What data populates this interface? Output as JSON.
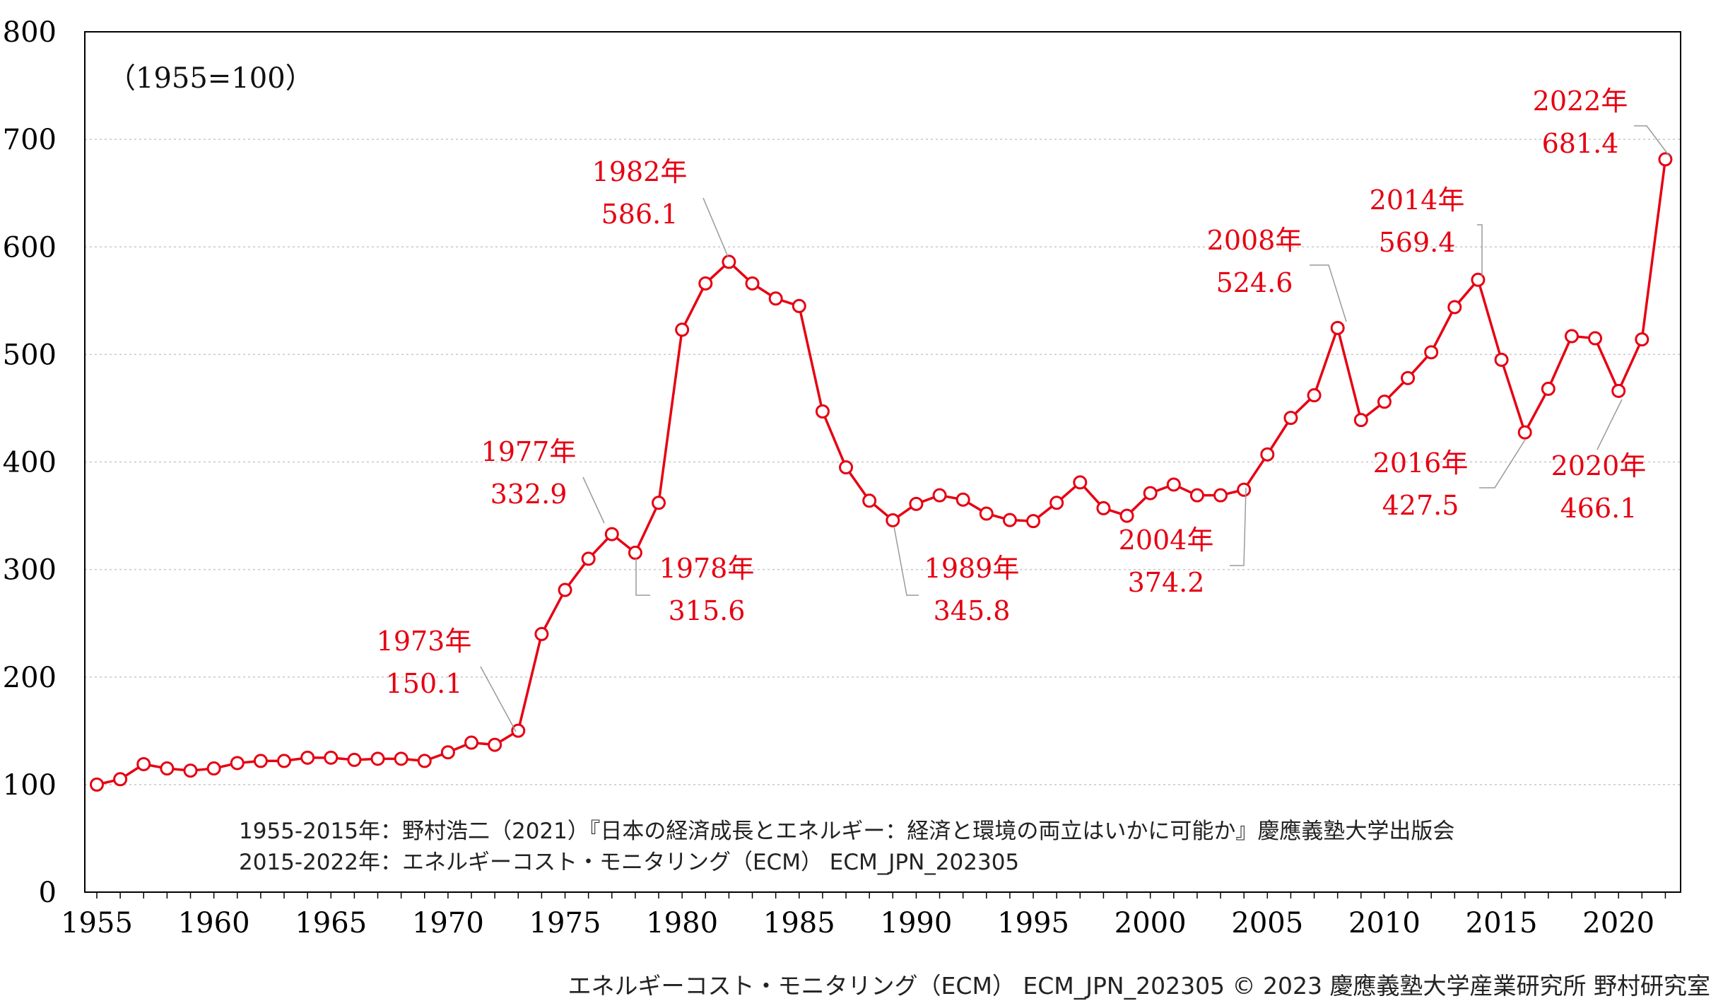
{
  "chart_data": {
    "type": "line",
    "base_note": "（1955=100）",
    "x": [
      1955,
      1956,
      1957,
      1958,
      1959,
      1960,
      1961,
      1962,
      1963,
      1964,
      1965,
      1966,
      1967,
      1968,
      1969,
      1970,
      1971,
      1972,
      1973,
      1974,
      1975,
      1976,
      1977,
      1978,
      1979,
      1980,
      1981,
      1982,
      1983,
      1984,
      1985,
      1986,
      1987,
      1988,
      1989,
      1990,
      1991,
      1992,
      1993,
      1994,
      1995,
      1996,
      1997,
      1998,
      1999,
      2000,
      2001,
      2002,
      2003,
      2004,
      2005,
      2006,
      2007,
      2008,
      2009,
      2010,
      2011,
      2012,
      2013,
      2014,
      2015,
      2016,
      2017,
      2018,
      2019,
      2020,
      2021,
      2022
    ],
    "values": [
      100,
      105,
      119,
      115,
      113,
      115,
      120,
      122,
      122,
      125,
      125,
      123,
      124,
      124,
      122,
      130,
      139,
      137,
      150.1,
      240,
      281,
      310,
      332.9,
      315.6,
      362,
      523,
      566,
      586.1,
      566,
      552,
      545,
      447,
      395,
      364,
      345.8,
      361,
      369,
      365,
      352,
      346,
      345,
      362,
      381,
      357,
      350,
      371,
      379,
      369,
      369,
      374.2,
      407,
      441,
      462,
      524.6,
      439,
      456,
      478,
      502,
      544,
      569.4,
      495,
      427.5,
      468,
      517,
      515,
      466.1,
      514,
      681.4
    ],
    "ylim": [
      0,
      800
    ],
    "yticks": [
      0,
      100,
      200,
      300,
      400,
      500,
      600,
      700,
      800
    ],
    "xticks": [
      1955,
      1960,
      1965,
      1970,
      1975,
      1980,
      1985,
      1990,
      1995,
      2000,
      2005,
      2010,
      2015,
      2020
    ],
    "grid": "horizontal dotted",
    "line_color": "#e60012",
    "annotations": [
      {
        "year": 1973,
        "label": "1973年",
        "value": "150.1"
      },
      {
        "year": 1977,
        "label": "1977年",
        "value": "332.9"
      },
      {
        "year": 1978,
        "label": "1978年",
        "value": "315.6"
      },
      {
        "year": 1982,
        "label": "1982年",
        "value": "586.1"
      },
      {
        "year": 1989,
        "label": "1989年",
        "value": "345.8"
      },
      {
        "year": 2004,
        "label": "2004年",
        "value": "374.2"
      },
      {
        "year": 2008,
        "label": "2008年",
        "value": "524.6"
      },
      {
        "year": 2014,
        "label": "2014年",
        "value": "569.4"
      },
      {
        "year": 2016,
        "label": "2016年",
        "value": "427.5"
      },
      {
        "year": 2020,
        "label": "2020年",
        "value": "466.1"
      },
      {
        "year": 2022,
        "label": "2022年",
        "value": "681.4"
      }
    ]
  },
  "sources": [
    "1955-2015年：野村浩二（2021）『日本の経済成長とエネルギー：経済と環境の両立はいかに可能か』慶應義塾大学出版会",
    "2015-2022年：エネルギーコスト・モニタリング（ECM） ECM_JPN_202305"
  ],
  "footer": "エネルギーコスト・モニタリング（ECM） ECM_JPN_202305 © 2023 慶應義塾大学産業研究所 野村研究室"
}
